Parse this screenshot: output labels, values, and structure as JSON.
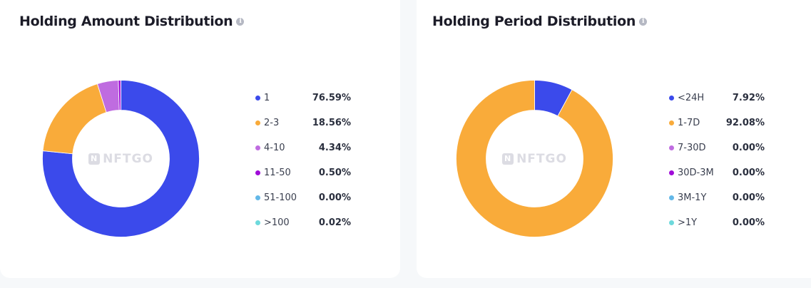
{
  "chart_data": [
    {
      "type": "pie",
      "title": "Holding Amount Distribution",
      "watermark": "NFTGO",
      "categories": [
        "1",
        "2-3",
        "4-10",
        "11-50",
        "51-100",
        ">100"
      ],
      "values": [
        76.59,
        18.56,
        4.34,
        0.5,
        0.0,
        0.02
      ],
      "value_labels": [
        "76.59%",
        "18.56%",
        "4.34%",
        "0.50%",
        "0.00%",
        "0.02%"
      ],
      "colors": [
        "#3b4aeb",
        "#f9ab3a",
        "#bf6ce0",
        "#a00cd8",
        "#63b8e8",
        "#6dd9dc"
      ],
      "legend_position": "right"
    },
    {
      "type": "pie",
      "title": "Holding Period Distribution",
      "watermark": "NFTGO",
      "categories": [
        "<24H",
        "1-7D",
        "7-30D",
        "30D-3M",
        "3M-1Y",
        ">1Y"
      ],
      "values": [
        7.92,
        92.08,
        0.0,
        0.0,
        0.0,
        0.0
      ],
      "value_labels": [
        "7.92%",
        "92.08%",
        "0.00%",
        "0.00%",
        "0.00%",
        "0.00%"
      ],
      "colors": [
        "#3b4aeb",
        "#f9ab3a",
        "#bf6ce0",
        "#a00cd8",
        "#63b8e8",
        "#6dd9dc"
      ],
      "legend_position": "right"
    }
  ]
}
